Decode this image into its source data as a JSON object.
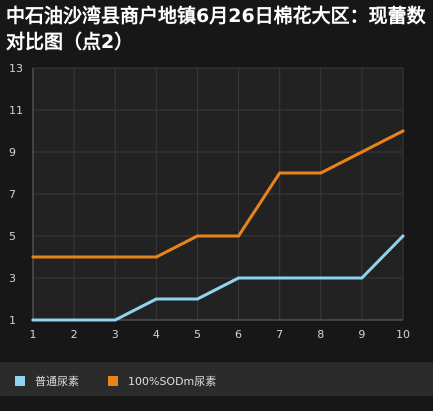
{
  "title": "中石油沙湾县商户地镇6月26日棉花大区：现蕾数对比图（点2）",
  "chart_data": {
    "type": "line",
    "x": [
      1,
      2,
      3,
      4,
      5,
      6,
      7,
      8,
      9,
      10
    ],
    "xlim": [
      1,
      10
    ],
    "ylim": [
      1,
      13
    ],
    "y_ticks": [
      1,
      3,
      5,
      7,
      9,
      11,
      13
    ],
    "grid": true,
    "legend_position": "bottom",
    "series": [
      {
        "name": "普通尿素",
        "color": "#8fd3ef",
        "values": [
          1,
          1,
          1,
          2,
          2,
          3,
          3,
          3,
          3,
          5
        ]
      },
      {
        "name": "100%SODm尿素",
        "color": "#e8841b",
        "values": [
          4,
          4,
          4,
          4,
          5,
          5,
          8,
          8,
          9,
          10
        ]
      }
    ]
  }
}
